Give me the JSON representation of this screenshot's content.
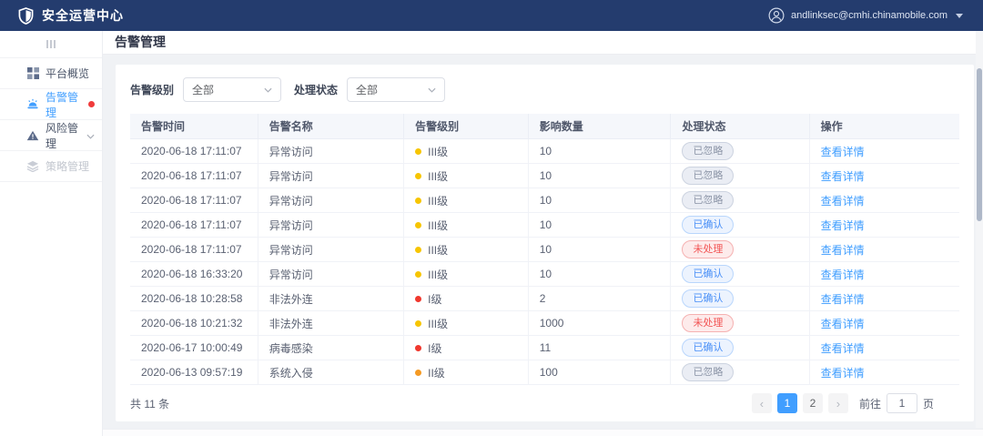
{
  "header": {
    "app_title": "安全运营中心",
    "user_email": "andlinksec@cmhi.chinamobile.com"
  },
  "sidebar": {
    "items": [
      {
        "label": "平台概览",
        "icon": "grid-icon",
        "state": "normal",
        "red_dot": false,
        "chevron": false
      },
      {
        "label": "告警管理",
        "icon": "alarm-icon",
        "state": "active",
        "red_dot": true,
        "chevron": false
      },
      {
        "label": "风险管理",
        "icon": "warning-triangle-icon",
        "state": "normal",
        "red_dot": false,
        "chevron": true
      },
      {
        "label": "策略管理",
        "icon": "layers-icon",
        "state": "disabled",
        "red_dot": false,
        "chevron": false
      }
    ]
  },
  "page": {
    "title": "告警管理"
  },
  "filters": [
    {
      "label": "告警级别",
      "value": "全部"
    },
    {
      "label": "处理状态",
      "value": "全部"
    }
  ],
  "table": {
    "columns": [
      "告警时间",
      "告警名称",
      "告警级别",
      "影响数量",
      "处理状态",
      "操作"
    ],
    "action_label": "查看详情",
    "rows": [
      {
        "time": "2020-06-18 17:11:07",
        "name": "异常访问",
        "level": "III级",
        "level_color": "#f7c500",
        "count": "10",
        "status": "已忽略",
        "status_type": "ignored"
      },
      {
        "time": "2020-06-18 17:11:07",
        "name": "异常访问",
        "level": "III级",
        "level_color": "#f7c500",
        "count": "10",
        "status": "已忽略",
        "status_type": "ignored"
      },
      {
        "time": "2020-06-18 17:11:07",
        "name": "异常访问",
        "level": "III级",
        "level_color": "#f7c500",
        "count": "10",
        "status": "已忽略",
        "status_type": "ignored"
      },
      {
        "time": "2020-06-18 17:11:07",
        "name": "异常访问",
        "level": "III级",
        "level_color": "#f7c500",
        "count": "10",
        "status": "已确认",
        "status_type": "confirmed"
      },
      {
        "time": "2020-06-18 17:11:07",
        "name": "异常访问",
        "level": "III级",
        "level_color": "#f7c500",
        "count": "10",
        "status": "未处理",
        "status_type": "unhandled"
      },
      {
        "time": "2020-06-18 16:33:20",
        "name": "异常访问",
        "level": "III级",
        "level_color": "#f7c500",
        "count": "10",
        "status": "已确认",
        "status_type": "confirmed"
      },
      {
        "time": "2020-06-18 10:28:58",
        "name": "非法外连",
        "level": "I级",
        "level_color": "#f0382e",
        "count": "2",
        "status": "已确认",
        "status_type": "confirmed"
      },
      {
        "time": "2020-06-18 10:21:32",
        "name": "非法外连",
        "level": "III级",
        "level_color": "#f7c500",
        "count": "1000",
        "status": "未处理",
        "status_type": "unhandled"
      },
      {
        "time": "2020-06-17 10:00:49",
        "name": "病毒感染",
        "level": "I级",
        "level_color": "#f0382e",
        "count": "11",
        "status": "已确认",
        "status_type": "confirmed"
      },
      {
        "time": "2020-06-13 09:57:19",
        "name": "系统入侵",
        "level": "II级",
        "level_color": "#f59a23",
        "count": "100",
        "status": "已忽略",
        "status_type": "ignored"
      }
    ]
  },
  "footer": {
    "total_text": "共 11 条",
    "pages": [
      "1",
      "2"
    ],
    "active_page": "1",
    "goto_prefix": "前往",
    "goto_value": "1",
    "goto_suffix": "页"
  },
  "colors": {
    "topbar_bg": "#243c6e",
    "accent_blue": "#409eff",
    "level_1": "#f0382e",
    "level_2": "#f59a23",
    "level_3": "#f7c500",
    "status_ignored_text": "#8d96a8",
    "status_confirmed_text": "#4a90f7",
    "status_unhandled_text": "#f25555"
  }
}
